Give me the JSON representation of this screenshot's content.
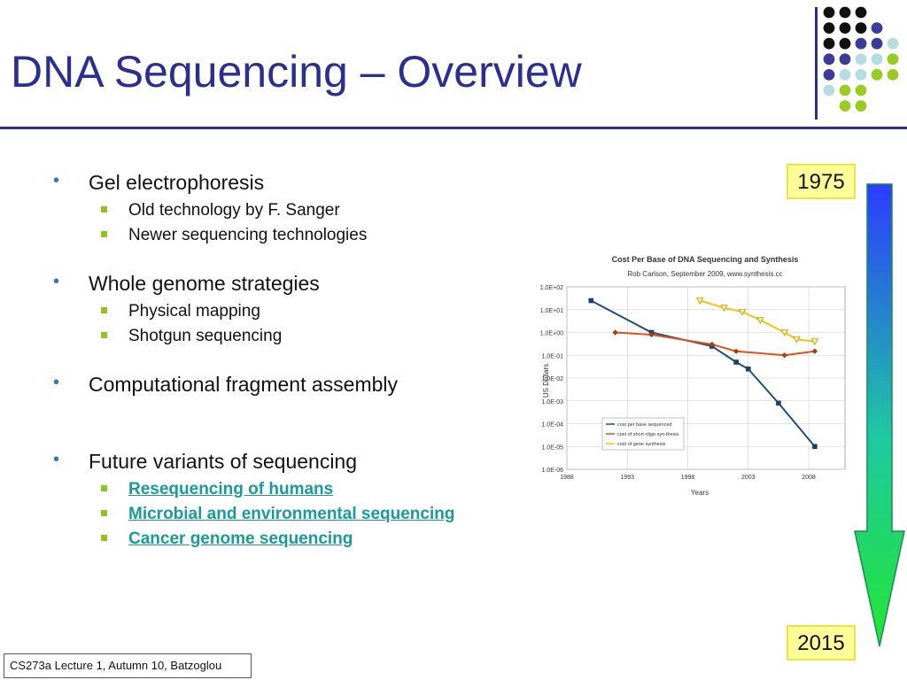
{
  "slide": {
    "title": "DNA Sequencing – Overview",
    "footer": "CS273a Lecture 1, Autumn 10, Batzoglou",
    "tag_top": "1975",
    "tag_bottom": "2015"
  },
  "bullets": [
    {
      "label": "Gel electrophoresis",
      "subs": [
        {
          "label": "Old technology by F. Sanger",
          "link": false
        },
        {
          "label": "Newer sequencing technologies",
          "link": false
        }
      ]
    },
    {
      "label": "Whole genome strategies",
      "subs": [
        {
          "label": "Physical mapping",
          "link": false
        },
        {
          "label": "Shotgun sequencing",
          "link": false
        }
      ]
    },
    {
      "label": "Computational fragment assembly",
      "subs": []
    },
    {
      "label": "Future variants of sequencing",
      "subs": [
        {
          "label": "Resequencing of humans",
          "link": true
        },
        {
          "label": "Microbial and environmental sequencing",
          "link": true
        },
        {
          "label": "Cancer genome sequencing",
          "link": true
        }
      ]
    }
  ],
  "colors": {
    "title": "#2b2f8f",
    "bullet_marker": "#2b7ab0",
    "sub_marker": "#8fc31f",
    "link": "#1a9a9a",
    "tag_fill": "#ffff99",
    "dot_black": "#111111",
    "dot_purple": "#3d3d99",
    "dot_lightblue": "#b3dde0",
    "dot_green": "#99cc22"
  },
  "decor_dots": [
    [
      "dot_black",
      "dot_black",
      "dot_black",
      null,
      null
    ],
    [
      "dot_black",
      "dot_black",
      "dot_black",
      "dot_purple",
      null
    ],
    [
      "dot_black",
      "dot_black",
      "dot_purple",
      "dot_purple",
      "dot_lightblue"
    ],
    [
      "dot_purple",
      "dot_purple",
      "dot_lightblue",
      "dot_lightblue",
      "dot_green"
    ],
    [
      "dot_purple",
      "dot_lightblue",
      "dot_lightblue",
      "dot_green",
      "dot_green"
    ],
    [
      "dot_lightblue",
      "dot_green",
      "dot_green",
      null,
      null
    ],
    [
      null,
      "dot_green",
      "dot_green",
      null,
      null
    ]
  ],
  "chart_data": {
    "type": "line",
    "title": "Cost Per Base of DNA Sequencing and Synthesis",
    "subtitle": "Rob Carlson, September 2009, www.synthesis.cc",
    "xlabel": "Years",
    "ylabel": "US Dollars",
    "xlim": [
      1988,
      2011
    ],
    "x_ticks": [
      1988,
      1993,
      1998,
      2003,
      2008
    ],
    "y_scale": "log",
    "ylim_exp": [
      -6,
      2
    ],
    "y_tick_labels": [
      "1.0E-06",
      "1.0E-05",
      "1.0E-04",
      "1.0E-03",
      "1.0E-02",
      "1.0E-01",
      "1.0E+00",
      "1.0E+01",
      "1.0E+02"
    ],
    "grid": true,
    "legend_position": "bottom-left",
    "series": [
      {
        "name": "cost per base sequenced",
        "color": "#1f4e79",
        "marker": "square",
        "x": [
          1990,
          1995,
          2000,
          2002,
          2003,
          2005.5,
          2008.5
        ],
        "y": [
          25,
          1.0,
          0.25,
          0.05,
          0.025,
          0.0008,
          1e-05
        ]
      },
      {
        "name": "cost of short oligo syn-thesis",
        "color": "#d9541e",
        "marker": "diamond",
        "x": [
          1992,
          1995,
          2000,
          2002,
          2006,
          2008.5
        ],
        "y": [
          1.0,
          0.8,
          0.3,
          0.15,
          0.1,
          0.15
        ]
      },
      {
        "name": "cost of gene synthesis",
        "color": "#f0c419",
        "marker": "triangle-down",
        "x": [
          1999,
          2001,
          2002.5,
          2004,
          2006,
          2007,
          2008.5
        ],
        "y": [
          25,
          12,
          8,
          3.5,
          1.0,
          0.5,
          0.4
        ]
      }
    ]
  }
}
